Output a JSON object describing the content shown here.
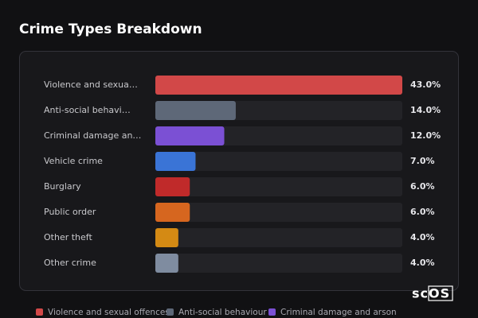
{
  "chart_data": {
    "type": "hbar",
    "title": "Crime Types Breakdown",
    "categories": [
      "Violence and sexua…",
      "Anti-social behavi…",
      "Criminal damage an…",
      "Vehicle crime",
      "Burglary",
      "Public order",
      "Other theft",
      "Other crime"
    ],
    "values": [
      43,
      14,
      12,
      7,
      6,
      6,
      4,
      4
    ],
    "value_labels": [
      "43.0%",
      "14.0%",
      "12.0%",
      "7.0%",
      "6.0%",
      "6.0%",
      "4.0%",
      "4.0%"
    ],
    "colors": [
      "#d24848",
      "#5e6878",
      "#7b50d4",
      "#3a74d6",
      "#c02a2a",
      "#d6661f",
      "#d48a14",
      "#7f8ca0"
    ],
    "xlim": [
      0,
      43
    ],
    "legend": [
      {
        "name": "Violence and sexual offences",
        "color": "#d24848"
      },
      {
        "name": "Anti-social behaviour",
        "color": "#5e6878"
      },
      {
        "name": "Criminal damage and arson",
        "color": "#7b50d4"
      }
    ],
    "watermark": "scOS"
  }
}
